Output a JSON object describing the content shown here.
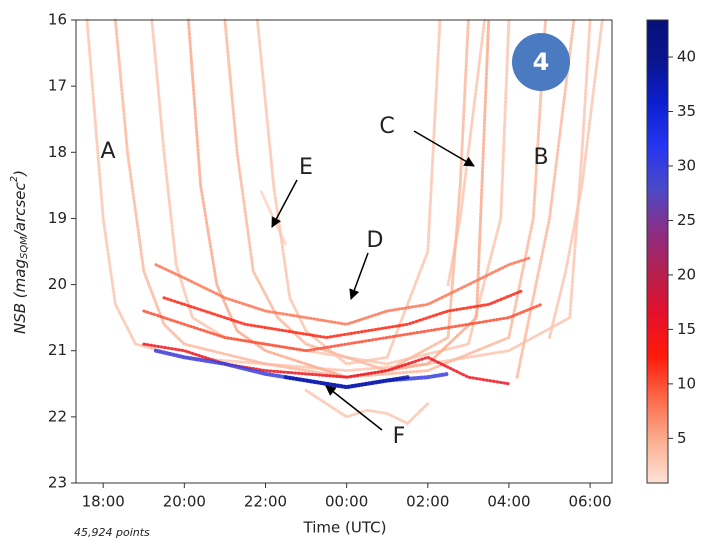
{
  "chart_data": {
    "type": "density-scatter",
    "xlabel": "Time (UTC)",
    "ylabel": {
      "main": "NSB (",
      "var": "mag",
      "sub": "SQM",
      "mid": "/arcsec",
      "sup": "2",
      "end": ")"
    },
    "xlim": [
      17.33,
      30.54
    ],
    "xticks": [
      {
        "value": 18,
        "label": "18:00"
      },
      {
        "value": 20,
        "label": "20:00"
      },
      {
        "value": 22,
        "label": "22:00"
      },
      {
        "value": 24,
        "label": "00:00"
      },
      {
        "value": 26,
        "label": "02:00"
      },
      {
        "value": 28,
        "label": "04:00"
      },
      {
        "value": 30,
        "label": "06:00"
      }
    ],
    "ylim": [
      23,
      16
    ],
    "yticks": [
      16,
      17,
      18,
      19,
      20,
      21,
      22,
      23
    ],
    "clim": [
      0.9,
      43.4
    ],
    "cticks": [
      5,
      10,
      15,
      20,
      25,
      30,
      35,
      40
    ],
    "colormap": [
      "#fde2d6",
      "#fcae91",
      "#fb6a4a",
      "#ff1a0a",
      "#e5102a",
      "#b5204f",
      "#8a2e86",
      "#4a49c8",
      "#2635f0",
      "#0c1fd0",
      "#0a1590",
      "#06107a"
    ],
    "tracks": [
      {
        "density": 3,
        "x": [
          17.6,
          17.8,
          18.0,
          18.3,
          18.8,
          20,
          22,
          24,
          26,
          28,
          29.5,
          29.8,
          30.0
        ],
        "y": [
          16,
          17.5,
          19,
          20.3,
          20.9,
          21.1,
          21.2,
          21.3,
          21.2,
          21.0,
          20.5,
          18,
          16
        ]
      },
      {
        "density": 4,
        "x": [
          18.3,
          18.6,
          19,
          19.5,
          20,
          22,
          24,
          26,
          28,
          28.6,
          28.9
        ],
        "y": [
          16,
          18,
          19.8,
          20.6,
          20.9,
          21.2,
          21.4,
          21.3,
          20.8,
          19,
          16
        ]
      },
      {
        "density": 3,
        "x": [
          19.2,
          19.5,
          19.8,
          20.2,
          21,
          23,
          25,
          27,
          27.8,
          28.0
        ],
        "y": [
          16,
          18,
          19.7,
          20.5,
          20.8,
          21.0,
          21.2,
          20.9,
          19,
          16
        ]
      },
      {
        "density": 5,
        "x": [
          20.1,
          20.4,
          20.8,
          21.3,
          22,
          24,
          26,
          27.2,
          27.5
        ],
        "y": [
          16,
          18.5,
          20,
          20.7,
          21.0,
          21.4,
          21.2,
          20.5,
          16
        ]
      },
      {
        "density": 4,
        "x": [
          21,
          21.3,
          21.7,
          22.3,
          23,
          25,
          26.5,
          26.8,
          27.0
        ],
        "y": [
          16,
          18,
          19.8,
          20.5,
          20.9,
          21.3,
          20.8,
          18.5,
          16
        ]
      },
      {
        "density": 3,
        "x": [
          21.8,
          22.2,
          22.6,
          23,
          24,
          25,
          26,
          26.3
        ],
        "y": [
          16,
          18.5,
          20.2,
          20.7,
          21.2,
          21.1,
          19.5,
          16
        ]
      },
      {
        "density": 8,
        "x": [
          19.3,
          20,
          21,
          22,
          23,
          24,
          25,
          26,
          27,
          28,
          28.5
        ],
        "y": [
          19.7,
          19.9,
          20.2,
          20.4,
          20.5,
          20.6,
          20.4,
          20.3,
          20.0,
          19.7,
          19.6
        ]
      },
      {
        "density": 10,
        "x": [
          19,
          20,
          21,
          22,
          23,
          24,
          25,
          26,
          27,
          28,
          28.8
        ],
        "y": [
          20.4,
          20.6,
          20.8,
          20.9,
          21.0,
          20.9,
          20.8,
          20.7,
          20.6,
          20.5,
          20.3
        ]
      },
      {
        "density": 12,
        "x": [
          19.5,
          20.5,
          21.5,
          22.5,
          23.5,
          24.5,
          25.5,
          26.5,
          27.5,
          28.3
        ],
        "y": [
          20.2,
          20.4,
          20.6,
          20.7,
          20.8,
          20.7,
          20.6,
          20.4,
          20.3,
          20.1
        ]
      },
      {
        "density": 15,
        "x": [
          19,
          20,
          21,
          22,
          23,
          24,
          25,
          26,
          27,
          28
        ],
        "y": [
          20.9,
          21.0,
          21.2,
          21.3,
          21.35,
          21.4,
          21.3,
          21.1,
          21.4,
          21.5
        ]
      },
      {
        "density": 30,
        "x": [
          19.3,
          20,
          21,
          22,
          23,
          24,
          25,
          26,
          26.5
        ],
        "y": [
          21.0,
          21.1,
          21.2,
          21.35,
          21.45,
          21.55,
          21.45,
          21.4,
          21.35
        ]
      },
      {
        "density": 38,
        "x": [
          22.5,
          23,
          23.5,
          24,
          24.5,
          25,
          25.5
        ],
        "y": [
          21.4,
          21.45,
          21.5,
          21.55,
          21.5,
          21.45,
          21.4
        ]
      },
      {
        "density": 3,
        "x": [
          23,
          23.5,
          24,
          24.5,
          25,
          25.5,
          26
        ],
        "y": [
          21.6,
          21.8,
          22.0,
          21.9,
          21.95,
          22.1,
          21.8
        ]
      },
      {
        "density": 2,
        "x": [
          21.9,
          22.2,
          22.5
        ],
        "y": [
          18.6,
          19.0,
          19.4
        ]
      },
      {
        "density": 4,
        "x": [
          28.2,
          28.5,
          29,
          29.3,
          29.6
        ],
        "y": [
          21.4,
          20.5,
          19,
          17.5,
          16
        ]
      },
      {
        "density": 3,
        "x": [
          29,
          29.4,
          29.8,
          30.1,
          30.3
        ],
        "y": [
          20.8,
          19.8,
          18.5,
          17,
          16
        ]
      },
      {
        "density": 3,
        "x": [
          26.5,
          26.8,
          27.1,
          27.4
        ],
        "y": [
          20,
          19,
          17.5,
          16
        ]
      }
    ],
    "annotations": [
      "A",
      "B",
      "C",
      "D",
      "E",
      "F"
    ],
    "badge": "4",
    "footnote": "45,924 points"
  }
}
